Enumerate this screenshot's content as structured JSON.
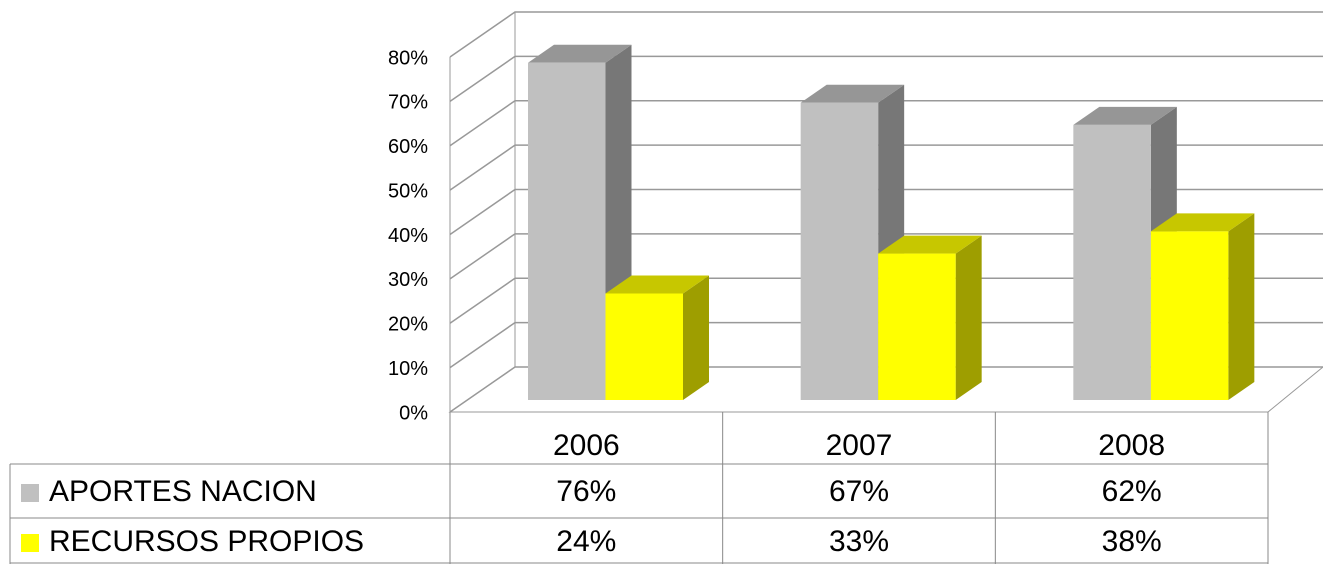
{
  "chart_data": {
    "type": "bar3d",
    "categories": [
      "2006",
      "2007",
      "2008"
    ],
    "series": [
      {
        "name": "APORTES NACION",
        "color": "#c0c0c0",
        "values": [
          76,
          67,
          62
        ],
        "value_labels": [
          "76%",
          "67%",
          "62%"
        ]
      },
      {
        "name": "RECURSOS PROPIOS",
        "color": "#ffff00",
        "values": [
          24,
          33,
          38
        ],
        "value_labels": [
          "24%",
          "33%",
          "38%"
        ]
      }
    ],
    "ylim": [
      0,
      80
    ],
    "yticks": [
      {
        "value": 0,
        "label": "0%"
      },
      {
        "value": 10,
        "label": "10%"
      },
      {
        "value": 20,
        "label": "20%"
      },
      {
        "value": 30,
        "label": "30%"
      },
      {
        "value": 40,
        "label": "40%"
      },
      {
        "value": 50,
        "label": "50%"
      },
      {
        "value": 60,
        "label": "60%"
      },
      {
        "value": 70,
        "label": "70%"
      },
      {
        "value": 80,
        "label": "80%"
      }
    ],
    "grid": true
  }
}
